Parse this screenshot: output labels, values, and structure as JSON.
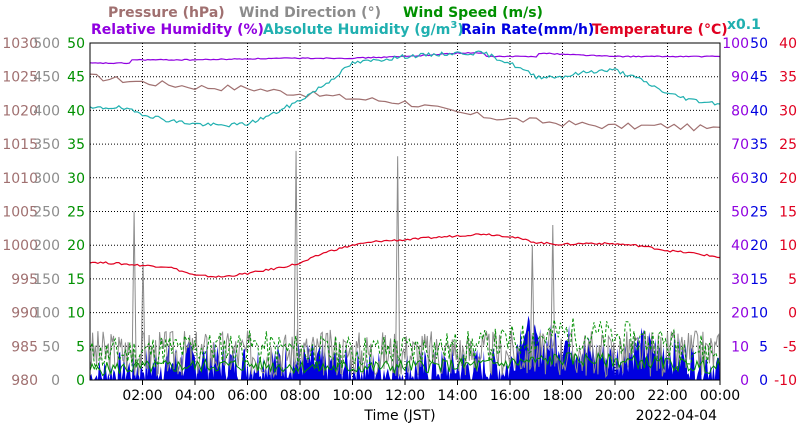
{
  "legend": {
    "pressure": "Pressure (hPa)",
    "wind_direction": "Wind Direction (°)",
    "wind_speed": "Wind Speed (m/s)",
    "relative_humidity": "Relative Humidity (%)",
    "absolute_humidity": "Absolute Humidity (g/m",
    "absolute_humidity_sup": "3",
    "absolute_humidity_close": ")",
    "rain_rate": "Rain Rate(mm/h)",
    "temperature": "Temperature (°C)",
    "abs_scale_note": "x0.1"
  },
  "colors": {
    "pressure": "#a07070",
    "wind_direction": "#8c8c8c",
    "wind_speed": "#009000",
    "relative_humidity": "#9000e0",
    "absolute_humidity": "#20b0b0",
    "rain_rate": "#0000e0",
    "temperature": "#e00020"
  },
  "axes": {
    "pressure_ticks": [
      "1030",
      "1025",
      "1020",
      "1015",
      "1010",
      "1005",
      "1000",
      "995",
      "990",
      "985",
      "980"
    ],
    "wind_dir_ticks": [
      "500",
      "450",
      "400",
      "350",
      "300",
      "250",
      "200",
      "150",
      "100",
      "50",
      "0"
    ],
    "wind_speed_ticks": [
      "50",
      "45",
      "40",
      "35",
      "30",
      "25",
      "20",
      "15",
      "10",
      "5",
      "0"
    ],
    "rh_ticks": [
      "100",
      "90",
      "80",
      "70",
      "60",
      "50",
      "40",
      "30",
      "20",
      "10",
      "0"
    ],
    "rain_ticks": [
      "50",
      "45",
      "40",
      "35",
      "30",
      "25",
      "20",
      "15",
      "10",
      "5",
      "0"
    ],
    "temp_ticks": [
      "40",
      "35",
      "30",
      "25",
      "20",
      "15",
      "10",
      "5",
      "0",
      "-5",
      "-10"
    ],
    "x_ticks": [
      "02:00",
      "04:00",
      "06:00",
      "08:00",
      "10:00",
      "12:00",
      "14:00",
      "16:00",
      "18:00",
      "20:00",
      "22:00",
      "00:00"
    ],
    "x_label": "Time (JST)",
    "date": "2022-04-04"
  },
  "chart_data": {
    "type": "line",
    "title": "",
    "xlabel": "Time (JST)",
    "x_range": [
      "2022-04-04 00:00",
      "2022-04-05 00:00"
    ],
    "grid": true,
    "y_axes": {
      "pressure_hPa": [
        980,
        1030
      ],
      "wind_direction_deg": [
        0,
        500
      ],
      "wind_speed_ms": [
        0,
        50
      ],
      "relative_humidity_pct": [
        0,
        100
      ],
      "rain_rate_mmh": [
        0,
        50
      ],
      "temperature_C": [
        -10,
        40
      ]
    },
    "series": [
      {
        "name": "Pressure (hPa)",
        "x_hours": [
          0,
          2,
          4,
          6,
          8,
          10,
          12,
          14,
          16,
          18,
          20,
          22,
          24
        ],
        "values": [
          1025.0,
          1024.2,
          1023.5,
          1023.3,
          1022.5,
          1021.8,
          1021.2,
          1019.6,
          1018.7,
          1018.1,
          1017.6,
          1017.7,
          1017.2
        ]
      },
      {
        "name": "Relative Humidity (%)",
        "x_hours": [
          0,
          1.5,
          1.6,
          4,
          6,
          8,
          10,
          12,
          14,
          15,
          15.1,
          17,
          17.1,
          20,
          22,
          24
        ],
        "values": [
          94,
          94,
          95,
          95,
          95.3,
          95.5,
          95.5,
          96,
          97,
          97,
          96,
          96,
          97,
          96,
          96,
          96
        ]
      },
      {
        "name": "Absolute Humidity (g/m3) x0.1",
        "x_hours": [
          0,
          1,
          2,
          3,
          4,
          5,
          6,
          7,
          8,
          9,
          10,
          11,
          12,
          13,
          14,
          15,
          16,
          17,
          18,
          19,
          20,
          21,
          22,
          23,
          24
        ],
        "values": [
          80.5,
          81,
          79,
          77,
          76,
          75.5,
          76,
          79,
          83,
          88,
          94,
          95,
          96,
          96.5,
          97,
          97,
          94,
          90,
          90,
          91.5,
          92,
          89,
          85,
          83,
          82
        ]
      },
      {
        "name": "Temperature (°C)",
        "x_hours": [
          0,
          1,
          2,
          3,
          4,
          5,
          6,
          7,
          8,
          9,
          10,
          11,
          12,
          13,
          14,
          15,
          16,
          17,
          18,
          19,
          20,
          21,
          22,
          23,
          24
        ],
        "values": [
          7.5,
          7.3,
          7.0,
          6.8,
          5.5,
          5.3,
          5.8,
          6.5,
          7.3,
          9.0,
          10.0,
          10.6,
          10.8,
          11.1,
          11.4,
          11.7,
          11.3,
          10.4,
          10.1,
          10.3,
          10.2,
          9.9,
          9.2,
          8.8,
          8.2
        ]
      },
      {
        "name": "Wind Direction (°)",
        "x_hours": [
          1.68,
          2.02,
          7.85,
          11.72,
          16.85,
          17.63
        ],
        "values": [
          250,
          175,
          340,
          332,
          200,
          230
        ]
      },
      {
        "name": "Wind Speed (m/s)",
        "x_hours": [
          0,
          3,
          6,
          9,
          12,
          15,
          18,
          21,
          24
        ],
        "values": [
          3.5,
          4.5,
          5,
          4,
          4.5,
          5,
          7,
          6,
          4
        ]
      },
      {
        "name": "Rain Rate(mm/h)",
        "x_hours": [
          0,
          2,
          4,
          6,
          8,
          10,
          12,
          14,
          16,
          16.5,
          17,
          18,
          19,
          20,
          21,
          22,
          23,
          24
        ],
        "values": [
          0.5,
          2,
          3,
          2.5,
          3,
          2,
          1.5,
          2,
          2,
          8,
          5,
          6,
          4,
          3,
          5,
          4,
          3,
          2
        ]
      }
    ]
  }
}
